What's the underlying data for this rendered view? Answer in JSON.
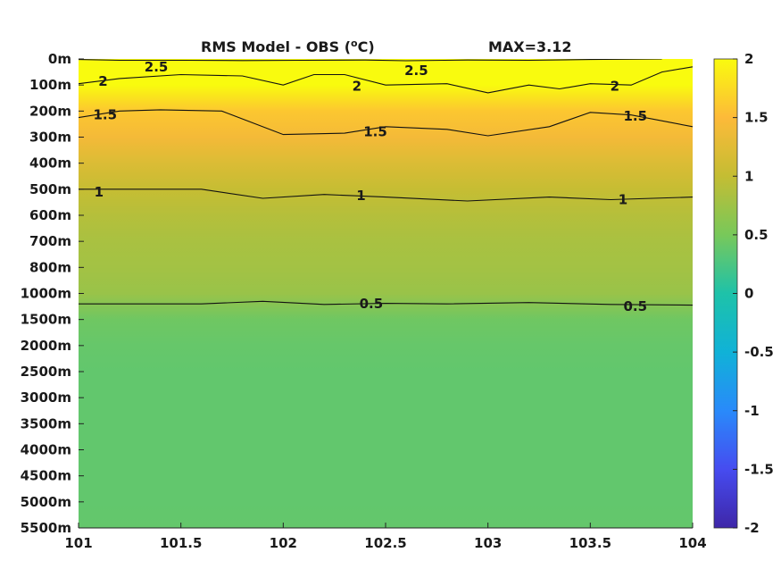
{
  "chart_data": {
    "type": "heatmap",
    "title_left": "RMS Model - OBS (",
    "title_unit_sup": "o",
    "title_unit_end": "C)",
    "title_right": "MAX=3.12",
    "xlim": [
      101,
      104
    ],
    "x_ticks": [
      {
        "value": 101,
        "label": "101"
      },
      {
        "value": 101.5,
        "label": "101.5"
      },
      {
        "value": 102,
        "label": "102"
      },
      {
        "value": 102.5,
        "label": "102.5"
      },
      {
        "value": 103,
        "label": "103"
      },
      {
        "value": 103.5,
        "label": "103.5"
      },
      {
        "value": 104,
        "label": "104"
      }
    ],
    "y_levels": [
      "0m",
      "100m",
      "200m",
      "300m",
      "400m",
      "500m",
      "600m",
      "700m",
      "800m",
      "1000m",
      "1500m",
      "2000m",
      "2500m",
      "3000m",
      "3500m",
      "4000m",
      "4500m",
      "5000m",
      "5500m"
    ],
    "colorbar": {
      "range": [
        -2,
        2
      ],
      "ticks": [
        {
          "value": 2,
          "label": "2"
        },
        {
          "value": 1.5,
          "label": "1.5"
        },
        {
          "value": 1,
          "label": "1"
        },
        {
          "value": 0.5,
          "label": "0.5"
        },
        {
          "value": 0,
          "label": "0"
        },
        {
          "value": -0.5,
          "label": "-0.5"
        },
        {
          "value": -1,
          "label": "-1"
        },
        {
          "value": -1.5,
          "label": "-1.5"
        },
        {
          "value": -2,
          "label": "-2"
        }
      ],
      "colormap": "parula"
    },
    "profile": [
      {
        "level": "0m",
        "value": 2.6
      },
      {
        "level": "100m",
        "value": 2.1
      },
      {
        "level": "200m",
        "value": 1.6
      },
      {
        "level": "300m",
        "value": 1.42
      },
      {
        "level": "400m",
        "value": 1.2
      },
      {
        "level": "500m",
        "value": 1.02
      },
      {
        "level": "600m",
        "value": 0.9
      },
      {
        "level": "700m",
        "value": 0.82
      },
      {
        "level": "800m",
        "value": 0.78
      },
      {
        "level": "1000m",
        "value": 0.72
      },
      {
        "level": "1500m",
        "value": 0.45
      },
      {
        "level": "2000m",
        "value": 0.4
      },
      {
        "level": "2500m",
        "value": 0.38
      },
      {
        "level": "3000m",
        "value": 0.38
      },
      {
        "level": "3500m",
        "value": 0.38
      },
      {
        "level": "4000m",
        "value": 0.38
      },
      {
        "level": "4500m",
        "value": 0.38
      },
      {
        "level": "5000m",
        "value": 0.38
      },
      {
        "level": "5500m",
        "value": 0.39
      }
    ],
    "contours": [
      {
        "level": 2.5,
        "label": "2.5",
        "points": [
          [
            101,
            0.02
          ],
          [
            101.2,
            0.05
          ],
          [
            101.5,
            0.05
          ],
          [
            101.8,
            0.06
          ],
          [
            102.1,
            0.05
          ],
          [
            102.4,
            0.04
          ],
          [
            102.6,
            0.07
          ],
          [
            102.9,
            0.04
          ],
          [
            103.2,
            0.05
          ],
          [
            103.5,
            0.02
          ],
          [
            103.85,
            0.0
          ]
        ],
        "label_positions": [
          [
            101.38,
            0.3
          ],
          [
            102.65,
            0.45
          ]
        ]
      },
      {
        "level": 2.0,
        "label": "2",
        "points": [
          [
            101,
            0.95
          ],
          [
            101.2,
            0.75
          ],
          [
            101.5,
            0.6
          ],
          [
            101.8,
            0.65
          ],
          [
            102.0,
            1.0
          ],
          [
            102.15,
            0.6
          ],
          [
            102.3,
            0.6
          ],
          [
            102.5,
            1.0
          ],
          [
            102.8,
            0.95
          ],
          [
            103.0,
            1.3
          ],
          [
            103.2,
            1.0
          ],
          [
            103.35,
            1.15
          ],
          [
            103.5,
            0.95
          ],
          [
            103.7,
            1.0
          ],
          [
            103.85,
            0.5
          ],
          [
            104.0,
            0.3
          ]
        ],
        "label_positions": [
          [
            101.12,
            0.85
          ],
          [
            102.36,
            1.05
          ],
          [
            103.62,
            1.05
          ]
        ]
      },
      {
        "level": 1.5,
        "label": "1.5",
        "points": [
          [
            101,
            2.25
          ],
          [
            101.2,
            2.0
          ],
          [
            101.4,
            1.95
          ],
          [
            101.7,
            2.0
          ],
          [
            102.0,
            2.9
          ],
          [
            102.3,
            2.85
          ],
          [
            102.5,
            2.6
          ],
          [
            102.8,
            2.7
          ],
          [
            103.0,
            2.95
          ],
          [
            103.3,
            2.6
          ],
          [
            103.5,
            2.05
          ],
          [
            103.7,
            2.15
          ],
          [
            104.0,
            2.6
          ]
        ],
        "label_positions": [
          [
            101.13,
            2.15
          ],
          [
            102.45,
            2.8
          ],
          [
            103.72,
            2.2
          ]
        ]
      },
      {
        "level": 1.0,
        "label": "1",
        "points": [
          [
            101,
            5.0
          ],
          [
            101.3,
            5.0
          ],
          [
            101.6,
            5.0
          ],
          [
            101.9,
            5.35
          ],
          [
            102.2,
            5.2
          ],
          [
            102.5,
            5.3
          ],
          [
            102.9,
            5.45
          ],
          [
            103.3,
            5.3
          ],
          [
            103.6,
            5.4
          ],
          [
            104.0,
            5.3
          ]
        ],
        "label_positions": [
          [
            101.1,
            5.1
          ],
          [
            102.38,
            5.25
          ],
          [
            103.66,
            5.4
          ]
        ]
      },
      {
        "level": 0.5,
        "label": "0.5",
        "points": [
          [
            101,
            9.4
          ],
          [
            101.3,
            9.4
          ],
          [
            101.6,
            9.4
          ],
          [
            101.9,
            9.3
          ],
          [
            102.2,
            9.42
          ],
          [
            102.5,
            9.38
          ],
          [
            102.8,
            9.4
          ],
          [
            103.2,
            9.35
          ],
          [
            103.6,
            9.42
          ],
          [
            104.0,
            9.45
          ]
        ],
        "label_positions": [
          [
            102.43,
            9.4
          ],
          [
            103.72,
            9.5
          ]
        ]
      }
    ]
  }
}
